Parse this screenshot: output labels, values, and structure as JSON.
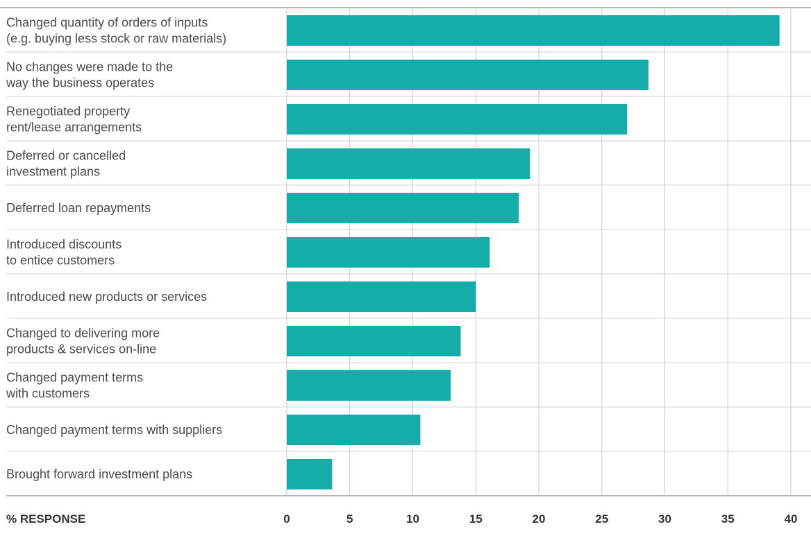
{
  "chart_data": {
    "type": "bar",
    "orientation": "horizontal",
    "xlabel": "% RESPONSE",
    "xlim": [
      0,
      40
    ],
    "xticks": [
      0,
      5,
      10,
      15,
      20,
      25,
      30,
      35,
      40
    ],
    "grid": true,
    "categories": [
      [
        "Changed quantity of orders of inputs",
        "(e.g. buying less stock or raw materials)"
      ],
      [
        "No changes were made to the",
        "way the business operates"
      ],
      [
        "Renegotiated property",
        "rent/lease arrangements"
      ],
      [
        "Deferred or cancelled",
        "investment plans"
      ],
      [
        "Deferred loan repayments"
      ],
      [
        "Introduced discounts",
        "to entice customers"
      ],
      [
        "Introduced new products or services"
      ],
      [
        "Changed to delivering more",
        "products & services on-line"
      ],
      [
        "Changed payment terms",
        "with customers"
      ],
      [
        "Changed payment terms with suppliers"
      ],
      [
        "Brought forward investment plans"
      ]
    ],
    "values": [
      39.1,
      28.7,
      27.0,
      19.3,
      18.4,
      16.1,
      15.0,
      13.8,
      13.0,
      10.6,
      3.6
    ],
    "colors": {
      "bar": "#14ADAA",
      "grid": "#c8c8c8",
      "rule": "#b3b3b3"
    }
  }
}
